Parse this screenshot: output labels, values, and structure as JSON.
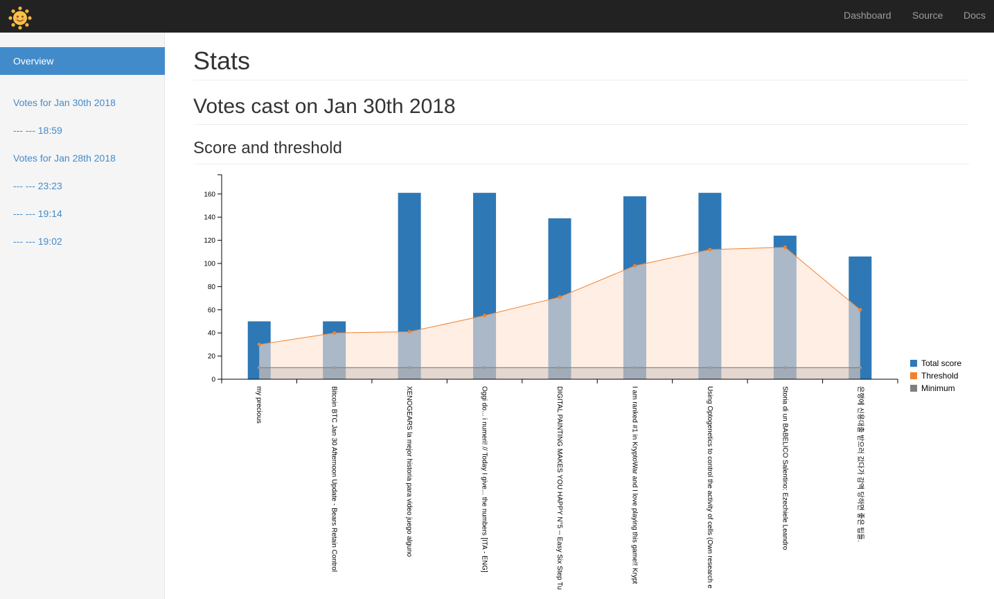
{
  "navbar": {
    "links": [
      "Dashboard",
      "Source",
      "Docs"
    ]
  },
  "sidebar": {
    "active": "Overview",
    "items": [
      "Votes for Jan 30th 2018",
      "--- --- 18:59",
      "Votes for Jan 28th 2018",
      "--- --- 23:23",
      "--- --- 19:14",
      "--- --- 19:02"
    ]
  },
  "main": {
    "title": "Stats",
    "subtitle": "Votes cast on Jan 30th 2018",
    "section": "Score and threshold"
  },
  "colors": {
    "total_score": "#2e78b6",
    "threshold": "#f0822f",
    "threshold_fill": "#fde3d2",
    "minimum": "#7f7f7f"
  },
  "chart_data": {
    "type": "bar",
    "ylim": [
      0,
      175
    ],
    "yticks": [
      0,
      20,
      40,
      60,
      80,
      100,
      120,
      140,
      160
    ],
    "legend_position": "right",
    "categories": [
      "my precious",
      "Bitcoin BTC Jan 30 Afternoon Update - Bears Retain Control",
      "XENOGEARS la mejor historia para video juego alguno",
      "Oggi do... i numeri! // Today I give... the numbers [ITA - ENG]",
      "DIGITAL PAINTING MAKES YOU HAPPY N°5 -- Easy Six Step Tu",
      "I am ranked #1 in KryptoWar and I love playing this game!! Krypt",
      "Using Optogenetics to control the activity of cells (Own research e",
      "Storia di un BABELICO Salentino: Ezechiele Leandro",
      "은행에 신용대출 받으러 갔다가 감액 당하면 좋은 팁들."
    ],
    "series": [
      {
        "name": "Total score",
        "values": [
          50,
          50,
          161,
          161,
          139,
          158,
          161,
          124,
          106
        ]
      },
      {
        "name": "Threshold",
        "values": [
          30,
          40,
          41,
          55,
          71,
          98,
          112,
          114,
          60
        ]
      },
      {
        "name": "Minimum",
        "values": [
          10,
          10,
          10,
          10,
          10,
          10,
          10,
          10,
          10
        ]
      }
    ]
  }
}
